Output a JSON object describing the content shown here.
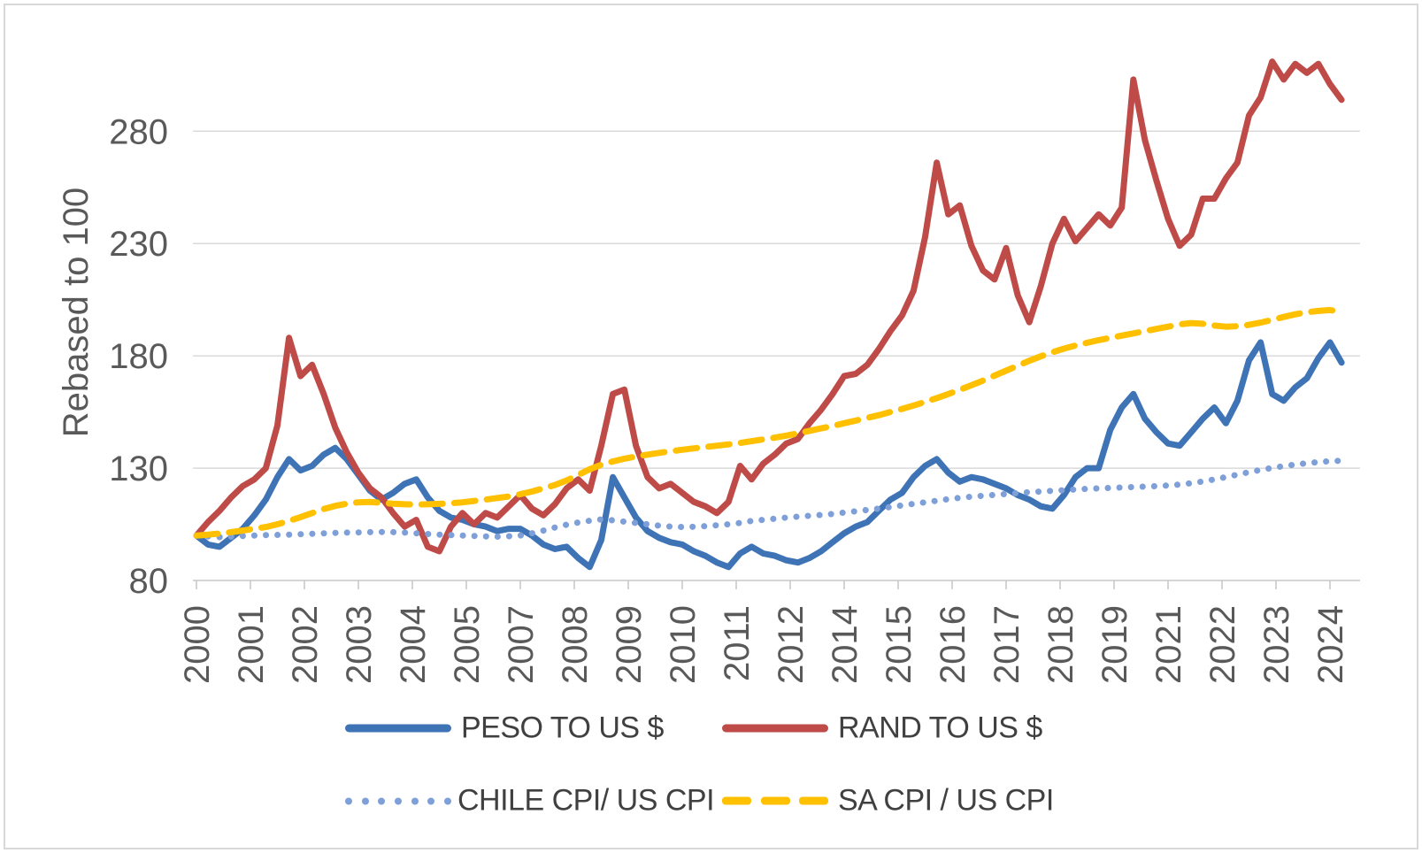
{
  "chart_data": {
    "type": "line",
    "title": "",
    "ylabel": "Rebased to 100",
    "ylim": [
      80,
      327
    ],
    "y_ticks": [
      80,
      130,
      180,
      230,
      280
    ],
    "grid": "horizontal",
    "legend_position": "bottom",
    "colors": {
      "peso": "#3E73B6",
      "rand": "#BE4B48",
      "chile_cpi": "#7E9FD8",
      "sa_cpi": "#FFC000",
      "gridline": "#DADADA",
      "axis": "#C6C6C6",
      "tick_text": "#595959",
      "legend_text": "#404040"
    },
    "x_axis": {
      "range": [
        2000,
        2025.15
      ],
      "ticks": [
        {
          "pos": 2000.0,
          "label": "2000"
        },
        {
          "pos": 2001.1667,
          "label": "2001"
        },
        {
          "pos": 2002.3333,
          "label": "2002"
        },
        {
          "pos": 2003.5,
          "label": "2003"
        },
        {
          "pos": 2004.6667,
          "label": "2004"
        },
        {
          "pos": 2005.8333,
          "label": "2005"
        },
        {
          "pos": 2007.0,
          "label": "2007"
        },
        {
          "pos": 2008.1667,
          "label": "2008"
        },
        {
          "pos": 2009.3333,
          "label": "2009"
        },
        {
          "pos": 2010.5,
          "label": "2010"
        },
        {
          "pos": 2011.6667,
          "label": "2011"
        },
        {
          "pos": 2012.8333,
          "label": "2012"
        },
        {
          "pos": 2014.0,
          "label": "2014"
        },
        {
          "pos": 2015.1667,
          "label": "2015"
        },
        {
          "pos": 2016.3333,
          "label": "2016"
        },
        {
          "pos": 2017.5,
          "label": "2017"
        },
        {
          "pos": 2018.6667,
          "label": "2018"
        },
        {
          "pos": 2019.8333,
          "label": "2019"
        },
        {
          "pos": 2021.0,
          "label": "2021"
        },
        {
          "pos": 2022.1667,
          "label": "2022"
        },
        {
          "pos": 2023.3333,
          "label": "2023"
        },
        {
          "pos": 2024.5,
          "label": "2024"
        }
      ]
    },
    "x": [
      2000.0,
      2000.25,
      2000.5,
      2000.75,
      2001.0,
      2001.25,
      2001.5,
      2001.75,
      2002.0,
      2002.25,
      2002.5,
      2002.75,
      2003.0,
      2003.25,
      2003.5,
      2003.75,
      2004.0,
      2004.25,
      2004.5,
      2004.75,
      2005.0,
      2005.25,
      2005.5,
      2005.75,
      2006.0,
      2006.25,
      2006.5,
      2006.75,
      2007.0,
      2007.25,
      2007.5,
      2007.75,
      2008.0,
      2008.25,
      2008.5,
      2008.75,
      2009.0,
      2009.25,
      2009.5,
      2009.75,
      2010.0,
      2010.25,
      2010.5,
      2010.75,
      2011.0,
      2011.25,
      2011.5,
      2011.75,
      2012.0,
      2012.25,
      2012.5,
      2012.75,
      2013.0,
      2013.25,
      2013.5,
      2013.75,
      2014.0,
      2014.25,
      2014.5,
      2014.75,
      2015.0,
      2015.25,
      2015.5,
      2015.75,
      2016.0,
      2016.25,
      2016.5,
      2016.75,
      2017.0,
      2017.25,
      2017.5,
      2017.75,
      2018.0,
      2018.25,
      2018.5,
      2018.75,
      2019.0,
      2019.25,
      2019.5,
      2019.75,
      2020.0,
      2020.25,
      2020.5,
      2020.75,
      2021.0,
      2021.25,
      2021.5,
      2021.75,
      2022.0,
      2022.25,
      2022.5,
      2022.75,
      2023.0,
      2023.25,
      2023.5,
      2023.75,
      2024.0,
      2024.25,
      2024.5,
      2024.75
    ],
    "series": [
      {
        "name": "PESO TO US $",
        "color": "#3E73B6",
        "style": "solid",
        "values": [
          100,
          96,
          95,
          99,
          103,
          109,
          116,
          126,
          134,
          129,
          131,
          136,
          139,
          134,
          127,
          120,
          116,
          119,
          123,
          125,
          117,
          111,
          108,
          107,
          105,
          104,
          102,
          103,
          103,
          100,
          96,
          94,
          95,
          90,
          86,
          98,
          126,
          117,
          108,
          102,
          99,
          97,
          96,
          93,
          91,
          88,
          86,
          92,
          95,
          92,
          91,
          89,
          88,
          90,
          93,
          97,
          101,
          104,
          106,
          111,
          116,
          119,
          126,
          131,
          134,
          128,
          124,
          126,
          125,
          123,
          121,
          118,
          116,
          113,
          112,
          118,
          126,
          130,
          130,
          147,
          157,
          163,
          152,
          146,
          141,
          140,
          146,
          152,
          157,
          150,
          160,
          178,
          186,
          163,
          160,
          166,
          170,
          179,
          186,
          177
        ]
      },
      {
        "name": "RAND TO US $",
        "color": "#BE4B48",
        "style": "solid",
        "values": [
          100,
          106,
          111,
          117,
          122,
          125,
          130,
          149,
          188,
          171,
          176,
          163,
          148,
          137,
          128,
          121,
          117,
          110,
          104,
          107,
          95,
          93,
          104,
          110,
          105,
          110,
          108,
          113,
          118,
          112,
          109,
          114,
          121,
          125,
          120,
          140,
          163,
          165,
          140,
          126,
          121,
          123,
          119,
          115,
          113,
          110,
          115,
          131,
          125,
          132,
          136,
          141,
          143,
          150,
          156,
          163,
          171,
          172,
          176,
          183,
          191,
          198,
          209,
          233,
          266,
          243,
          247,
          229,
          218,
          214,
          228,
          207,
          195,
          211,
          230,
          241,
          231,
          237,
          243,
          238,
          246,
          303,
          276,
          258,
          241,
          229,
          234,
          250,
          250,
          259,
          266,
          287,
          295,
          311,
          303,
          310,
          306,
          310,
          301,
          294
        ]
      },
      {
        "name": "CHILE CPI/ US CPI",
        "color": "#7E9FD8",
        "style": "dotted",
        "values": [
          100,
          99.6,
          99.3,
          99.5,
          99.8,
          100,
          100.2,
          100.3,
          100.4,
          100.6,
          100.8,
          101,
          101.2,
          101.3,
          101.4,
          101.5,
          101.6,
          101.5,
          101.3,
          101,
          100.7,
          100.4,
          100.2,
          100,
          99.8,
          99.6,
          99.5,
          99.7,
          100,
          101,
          102.2,
          103.6,
          104.8,
          105.8,
          106.6,
          107.2,
          106.8,
          106.2,
          105.6,
          105,
          104.4,
          104,
          103.8,
          103.9,
          104.2,
          104.6,
          105,
          105.6,
          106.5,
          107,
          107.5,
          108,
          108.4,
          108.8,
          109.2,
          109.6,
          110.2,
          110.8,
          111.4,
          112,
          112.7,
          113.4,
          114.1,
          114.8,
          115.5,
          116.2,
          116.8,
          117.3,
          117.7,
          118.1,
          118.5,
          118.9,
          119.3,
          119.6,
          119.9,
          120.2,
          120.5,
          120.8,
          121,
          121.2,
          121.4,
          121.6,
          121.8,
          122,
          122.3,
          122.7,
          123.3,
          124.1,
          125,
          126,
          127.1,
          128.2,
          129.2,
          130.1,
          130.9,
          131.6,
          132.2,
          132.7,
          133.1,
          133.3
        ]
      },
      {
        "name": "SA CPI / US CPI",
        "color": "#FFC000",
        "style": "dashed",
        "values": [
          100,
          100.4,
          100.9,
          101.5,
          102.2,
          103,
          103.8,
          105,
          106.5,
          108.2,
          110,
          111.8,
          113.2,
          114.2,
          114.8,
          115,
          114.6,
          114.2,
          113.9,
          113.8,
          113.9,
          114.1,
          114.4,
          114.8,
          115.4,
          116,
          116.7,
          117.4,
          118.4,
          119.6,
          121,
          122.5,
          124.5,
          127,
          129.5,
          131.5,
          133,
          134.2,
          135.2,
          136,
          136.8,
          137.5,
          138.2,
          138.8,
          139.4,
          140,
          140.6,
          141.2,
          142,
          142.8,
          143.6,
          144.5,
          145.5,
          146.6,
          147.7,
          148.8,
          150,
          151.2,
          152.4,
          153.6,
          155,
          156.4,
          157.9,
          159.5,
          161.2,
          163,
          164.9,
          166.9,
          169,
          171.2,
          173.4,
          175.6,
          177.8,
          179.8,
          181.6,
          183.2,
          184.6,
          185.8,
          187,
          188,
          189,
          190,
          191,
          192,
          193,
          194,
          194.6,
          194.3,
          193.5,
          193,
          193.2,
          193.8,
          194.8,
          196,
          197.3,
          198.5,
          199.4,
          200,
          200.4,
          199.6
        ]
      }
    ]
  }
}
